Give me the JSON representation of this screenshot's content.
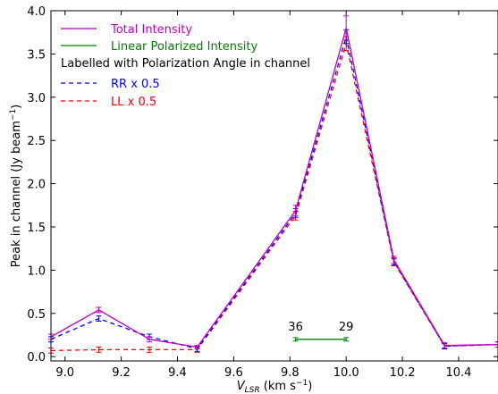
{
  "chart_data": {
    "type": "line",
    "xlabel": "V_LSR (km s^-1)",
    "ylabel": "Peak in channel (Jy beam^-1)",
    "xlim": [
      8.95,
      10.54
    ],
    "ylim": [
      -0.05,
      4.0
    ],
    "xticks": [
      "9.0",
      "9.2",
      "9.4",
      "9.6",
      "9.8",
      "10.0",
      "10.2",
      "10.4"
    ],
    "xtick_values": [
      9.0,
      9.2,
      9.4,
      9.6,
      9.8,
      10.0,
      10.2,
      10.4
    ],
    "yticks": [
      "0.0",
      "0.5",
      "1.0",
      "1.5",
      "2.0",
      "2.5",
      "3.0",
      "3.5",
      "4.0"
    ],
    "ytick_values": [
      0.0,
      0.5,
      1.0,
      1.5,
      2.0,
      2.5,
      3.0,
      3.5,
      4.0
    ],
    "legend_note": "Labelled with Polarization Angle in channel",
    "legend_placement": "top-left",
    "series": [
      {
        "name": "Total Intensity",
        "color": "#bf00bf",
        "style": "solid",
        "x": [
          8.95,
          9.12,
          9.3,
          9.47,
          9.82,
          10.0,
          10.17,
          10.35,
          10.54
        ],
        "y": [
          0.23,
          0.54,
          0.2,
          0.11,
          1.69,
          3.8,
          1.12,
          0.13,
          0.14
        ],
        "yerr": [
          0.03,
          0.03,
          0.03,
          0.02,
          0.06,
          0.14,
          0.04,
          0.03,
          0.03
        ]
      },
      {
        "name": "Linear Polarized Intensity",
        "color": "#008000",
        "style": "solid",
        "x": [
          9.82,
          10.0
        ],
        "y": [
          0.2,
          0.2
        ],
        "yerr": [
          0.02,
          0.02
        ],
        "angle_labels": [
          "36",
          "29"
        ]
      },
      {
        "name": "RR x 0.5",
        "color": "#0000ff",
        "style": "dashed",
        "x": [
          8.95,
          9.12,
          9.3,
          9.47,
          9.82,
          10.0,
          10.17,
          10.35,
          10.54
        ],
        "y": [
          0.2,
          0.44,
          0.23,
          0.09,
          1.66,
          3.7,
          1.1,
          0.12,
          0.14
        ],
        "yerr": [
          0.03,
          0.03,
          0.03,
          0.03,
          0.05,
          0.08,
          0.04,
          0.03,
          0.03
        ]
      },
      {
        "name": "LL x 0.5",
        "color": "#ff0000",
        "style": "dashed",
        "x": [
          8.95,
          9.12,
          9.3,
          9.47,
          9.82,
          10.0,
          10.17,
          10.35,
          10.54
        ],
        "y": [
          0.07,
          0.08,
          0.08,
          0.08,
          1.63,
          3.62,
          1.09,
          0.12,
          0.14
        ],
        "yerr": [
          0.03,
          0.03,
          0.03,
          0.03,
          0.05,
          0.08,
          0.04,
          0.03,
          0.03
        ]
      }
    ]
  }
}
